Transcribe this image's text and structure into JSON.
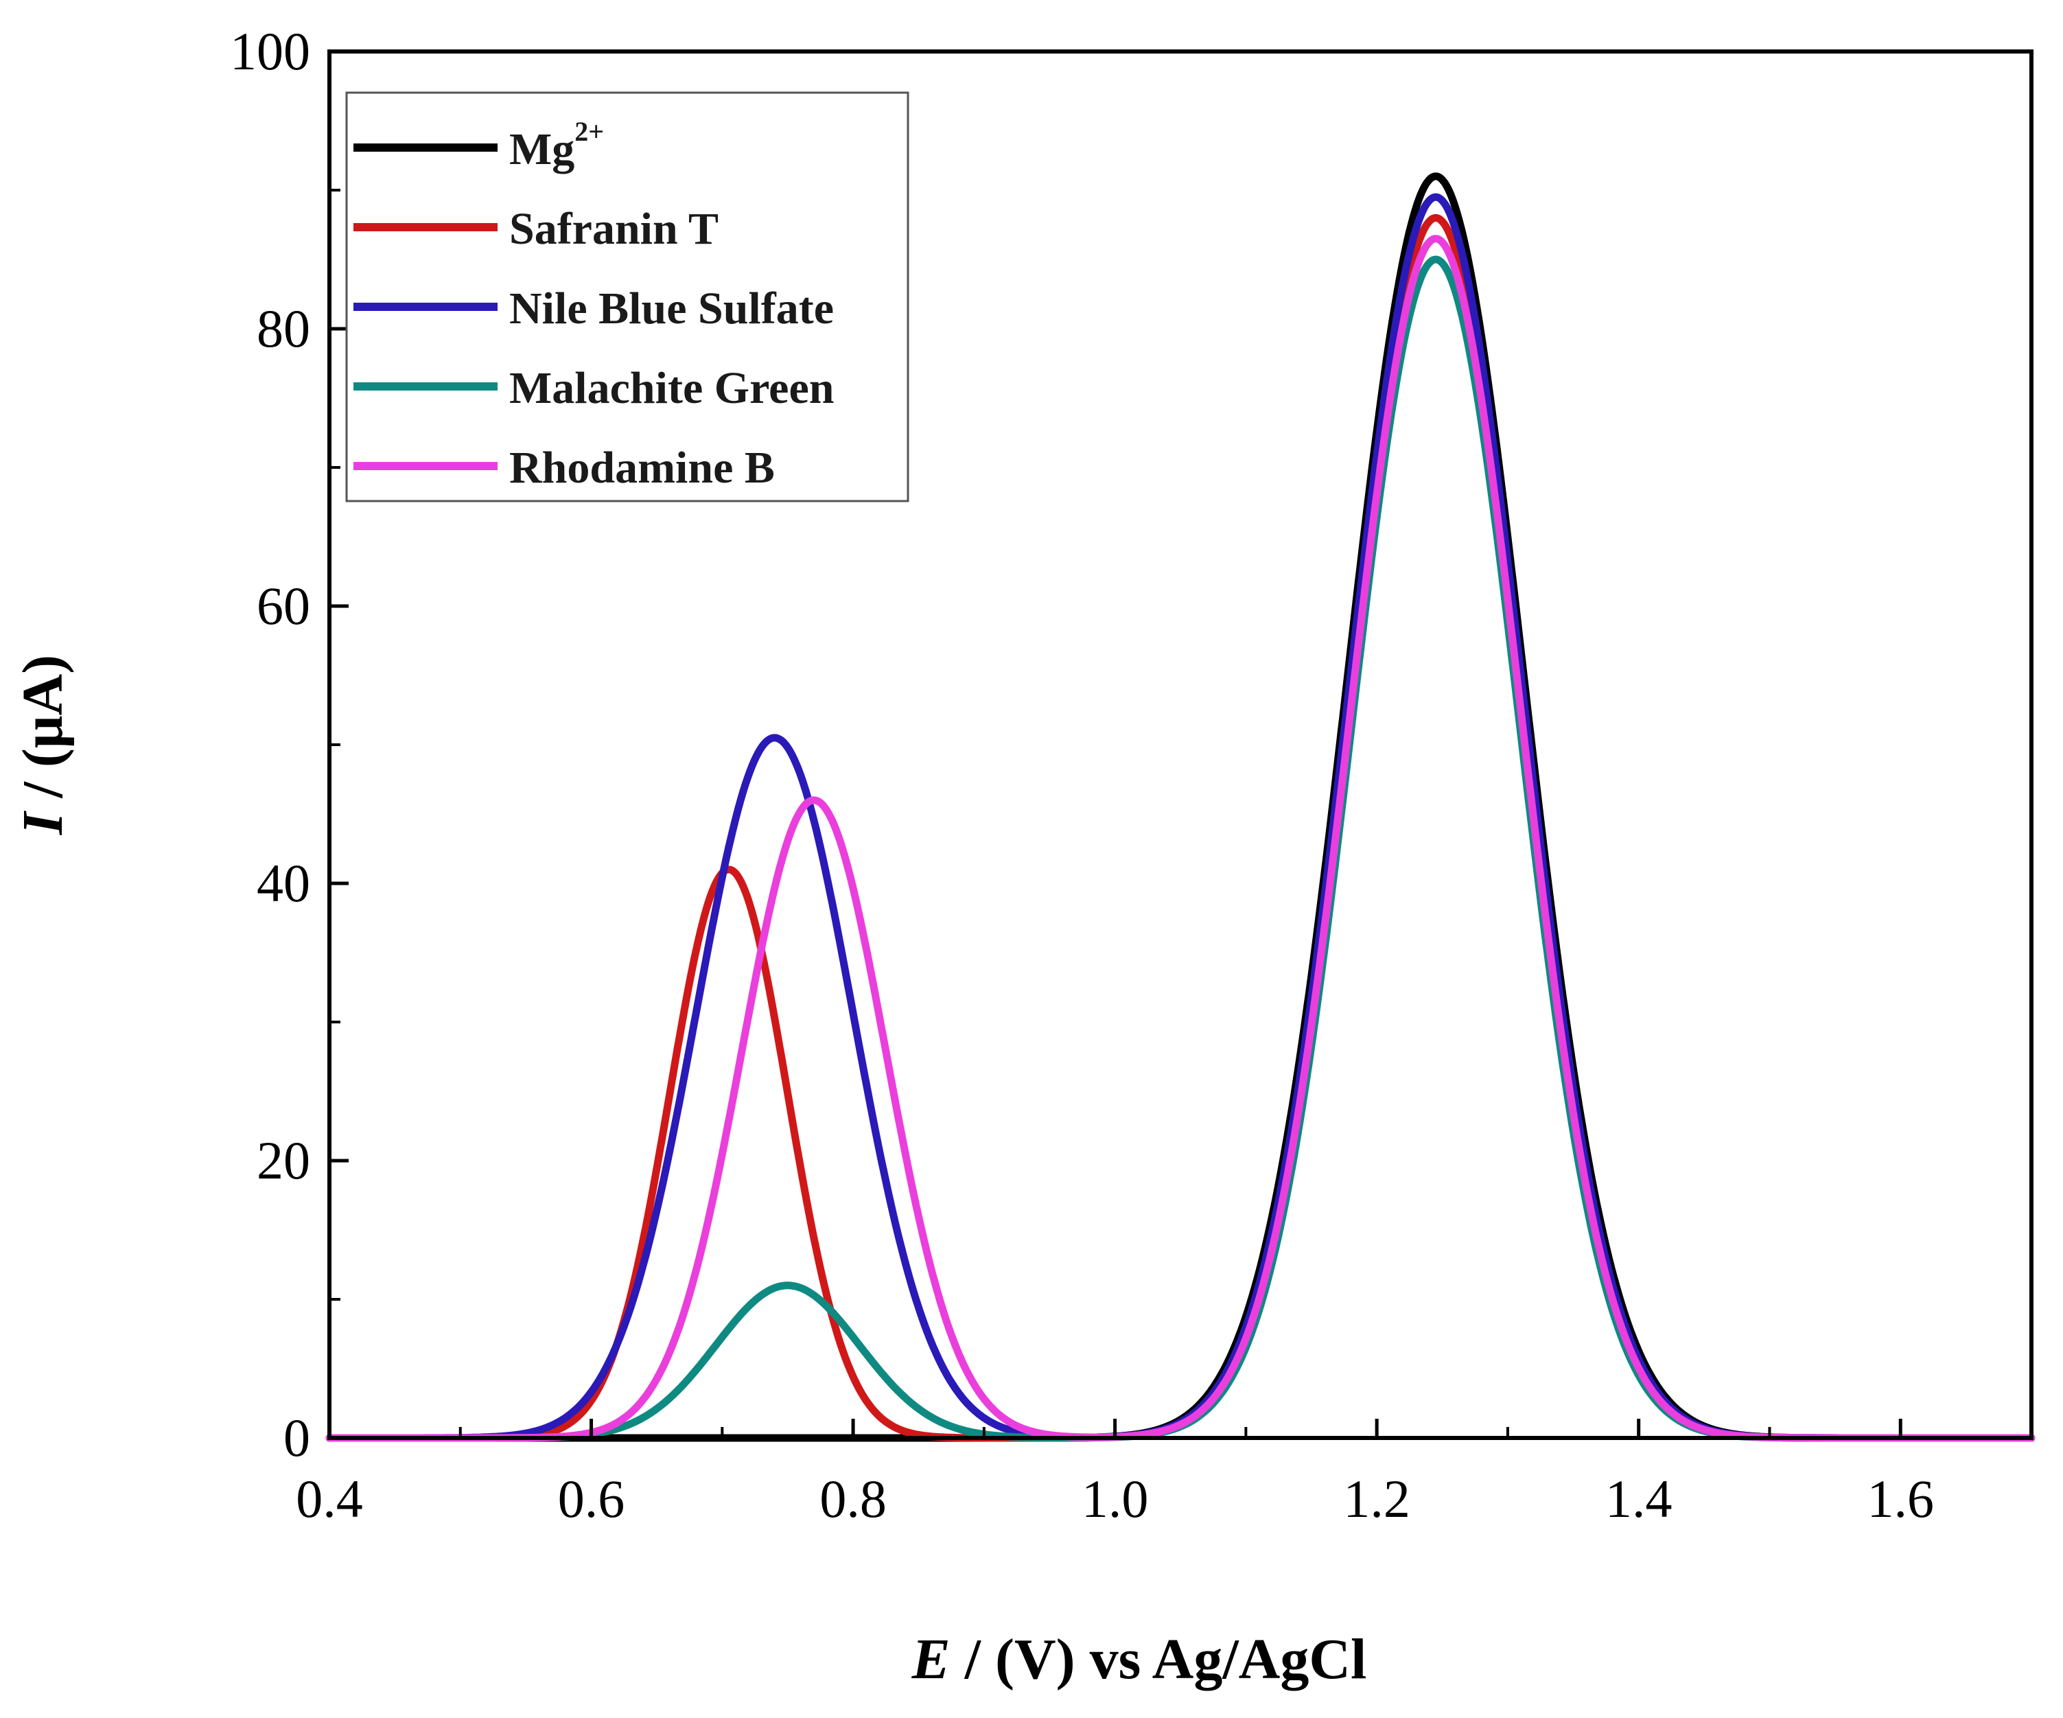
{
  "chart_data": {
    "type": "line",
    "title": "",
    "xlabel": {
      "italic": "E",
      "rest": " / (V) vs Ag/AgCl"
    },
    "ylabel": {
      "italic": "I",
      "rest": " / (μA)"
    },
    "xlim": [
      0.4,
      1.7
    ],
    "ylim": [
      0,
      100
    ],
    "x_ticks": [
      0.4,
      0.6,
      0.8,
      1.0,
      1.2,
      1.4,
      1.6
    ],
    "x_tick_labels": [
      "0.4",
      "0.6",
      "0.8",
      "1.0",
      "1.2",
      "1.4",
      "1.6"
    ],
    "y_ticks": [
      0,
      20,
      40,
      60,
      80,
      100
    ],
    "y_tick_labels": [
      "0",
      "20",
      "40",
      "60",
      "80",
      "100"
    ],
    "grid": false,
    "legend_position": "top-left",
    "series": [
      {
        "name": "Mg",
        "name_sup": "2+",
        "color": "#000000",
        "peaks": [
          {
            "center": 1.245,
            "height": 91,
            "width": 0.067
          }
        ]
      },
      {
        "name": "Safranin T",
        "color": "#d01818",
        "peaks": [
          {
            "center": 0.705,
            "height": 41,
            "width": 0.045
          },
          {
            "center": 1.245,
            "height": 88,
            "width": 0.065
          }
        ]
      },
      {
        "name": "Nile Blue Sulfate",
        "color": "#2a1ab8",
        "peaks": [
          {
            "center": 0.74,
            "height": 50.5,
            "width": 0.06
          },
          {
            "center": 1.245,
            "height": 89.5,
            "width": 0.066
          }
        ]
      },
      {
        "name": "Malachite Green",
        "color": "#0f8a82",
        "peaks": [
          {
            "center": 0.75,
            "height": 11,
            "width": 0.055
          },
          {
            "center": 1.245,
            "height": 85,
            "width": 0.064
          }
        ]
      },
      {
        "name": "Rhodamine B",
        "color": "#ea3fdc",
        "peaks": [
          {
            "center": 0.77,
            "height": 46,
            "width": 0.055
          },
          {
            "center": 1.245,
            "height": 86.5,
            "width": 0.065
          }
        ]
      }
    ]
  }
}
